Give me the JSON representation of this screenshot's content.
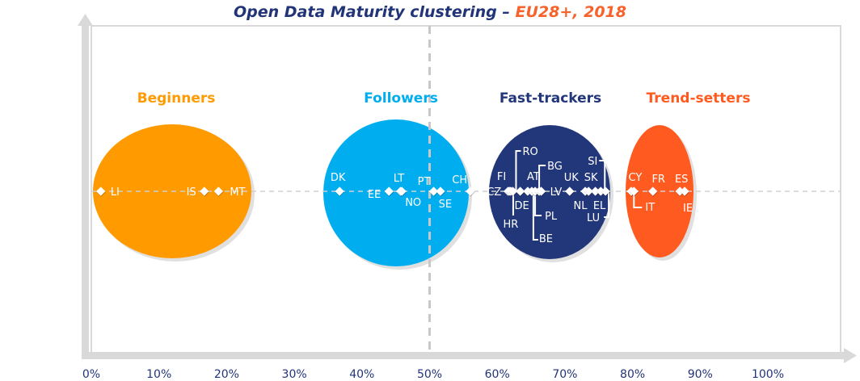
{
  "chart_data": {
    "type": "scatter",
    "title": "Open Data Maturity clustering – ",
    "title_highlight": "EU28+, 2018",
    "xlabel": "",
    "ylabel": "",
    "xlim": [
      0,
      100
    ],
    "x_ticks": [
      "0%",
      "10%",
      "20%",
      "30%",
      "40%",
      "50%",
      "60%",
      "70%",
      "80%",
      "90%",
      "100%"
    ],
    "reference_line_x": 50,
    "clusters": [
      {
        "name": "Beginners",
        "color": "#FF9A00",
        "center": 12,
        "label_color": "#FF9A00"
      },
      {
        "name": "Followers",
        "color": "#00AEEF",
        "center": 45,
        "label_color": "#00AEEF"
      },
      {
        "name": "Fast-trackers",
        "color": "#22367A",
        "center": 68,
        "label_color": "#22367A"
      },
      {
        "name": "Trend-setters",
        "color": "#FF5A1F",
        "center": 84,
        "label_color": "#FF5A1F"
      }
    ],
    "points": [
      {
        "country": "LI",
        "x": 1.4,
        "cluster": "Beginners"
      },
      {
        "country": "IS",
        "x": 16.7,
        "cluster": "Beginners"
      },
      {
        "country": "MT",
        "x": 18.8,
        "cluster": "Beginners"
      },
      {
        "country": "DK",
        "x": 36.7,
        "cluster": "Followers"
      },
      {
        "country": "EE",
        "x": 44.0,
        "cluster": "Followers"
      },
      {
        "country": "LT",
        "x": 45.7,
        "cluster": "Followers"
      },
      {
        "country": "NO",
        "x": 45.9,
        "cluster": "Followers"
      },
      {
        "country": "PT",
        "x": 50.6,
        "cluster": "Followers"
      },
      {
        "country": "SE",
        "x": 51.6,
        "cluster": "Followers"
      },
      {
        "country": "CH",
        "x": 56.0,
        "cluster": "Followers"
      },
      {
        "country": "FI",
        "x": 61.6,
        "cluster": "Fast-trackers"
      },
      {
        "country": "CZ",
        "x": 61.8,
        "cluster": "Fast-trackers"
      },
      {
        "country": "HR",
        "x": 62.0,
        "cluster": "Fast-trackers"
      },
      {
        "country": "RO",
        "x": 62.3,
        "cluster": "Fast-trackers"
      },
      {
        "country": "DE",
        "x": 63.4,
        "cluster": "Fast-trackers"
      },
      {
        "country": "AT",
        "x": 64.5,
        "cluster": "Fast-trackers"
      },
      {
        "country": "BE",
        "x": 65.1,
        "cluster": "Fast-trackers"
      },
      {
        "country": "PL",
        "x": 65.6,
        "cluster": "Fast-trackers"
      },
      {
        "country": "BG",
        "x": 66.2,
        "cluster": "Fast-trackers"
      },
      {
        "country": "LV",
        "x": 66.5,
        "cluster": "Fast-trackers"
      },
      {
        "country": "UK",
        "x": 70.7,
        "cluster": "Fast-trackers"
      },
      {
        "country": "NL",
        "x": 73.0,
        "cluster": "Fast-trackers"
      },
      {
        "country": "SK",
        "x": 73.5,
        "cluster": "Fast-trackers"
      },
      {
        "country": "EL",
        "x": 74.5,
        "cluster": "Fast-trackers"
      },
      {
        "country": "SI",
        "x": 75.3,
        "cluster": "Fast-trackers"
      },
      {
        "country": "LU",
        "x": 76.0,
        "cluster": "Fast-trackers"
      },
      {
        "country": "CY",
        "x": 79.8,
        "cluster": "Trend-setters"
      },
      {
        "country": "IT",
        "x": 80.2,
        "cluster": "Trend-setters"
      },
      {
        "country": "FR",
        "x": 83.0,
        "cluster": "Trend-setters"
      },
      {
        "country": "ES",
        "x": 87.0,
        "cluster": "Trend-setters"
      },
      {
        "country": "IE",
        "x": 87.7,
        "cluster": "Trend-setters"
      }
    ],
    "colors": {
      "title": "#223478",
      "title_highlight": "#F7612A",
      "axis": "#D9D9D9"
    }
  }
}
